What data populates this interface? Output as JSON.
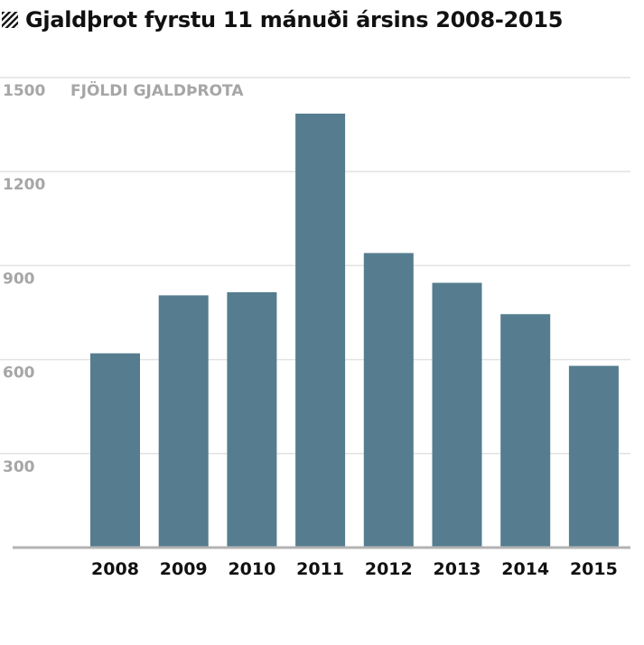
{
  "chart_data": {
    "type": "bar",
    "title": "Gjaldþrot fyrstu 11 mánuði ársins 2008-2015",
    "ylabel": "FJÖLDI GJALDÞROTA",
    "xlabel": "",
    "categories": [
      "2008",
      "2009",
      "2010",
      "2011",
      "2012",
      "2013",
      "2014",
      "2015"
    ],
    "values": [
      620,
      805,
      815,
      1385,
      940,
      845,
      745,
      580
    ],
    "ylim": [
      0,
      1500
    ],
    "yticks": [
      300,
      600,
      900,
      1200,
      1500
    ],
    "grid": true,
    "legend": "none",
    "bar_color": "#557d8f",
    "grid_color": "#e2e2e2",
    "axis_color": "#b3b3b3"
  },
  "icons": {
    "title_icon": "hatch-icon"
  }
}
